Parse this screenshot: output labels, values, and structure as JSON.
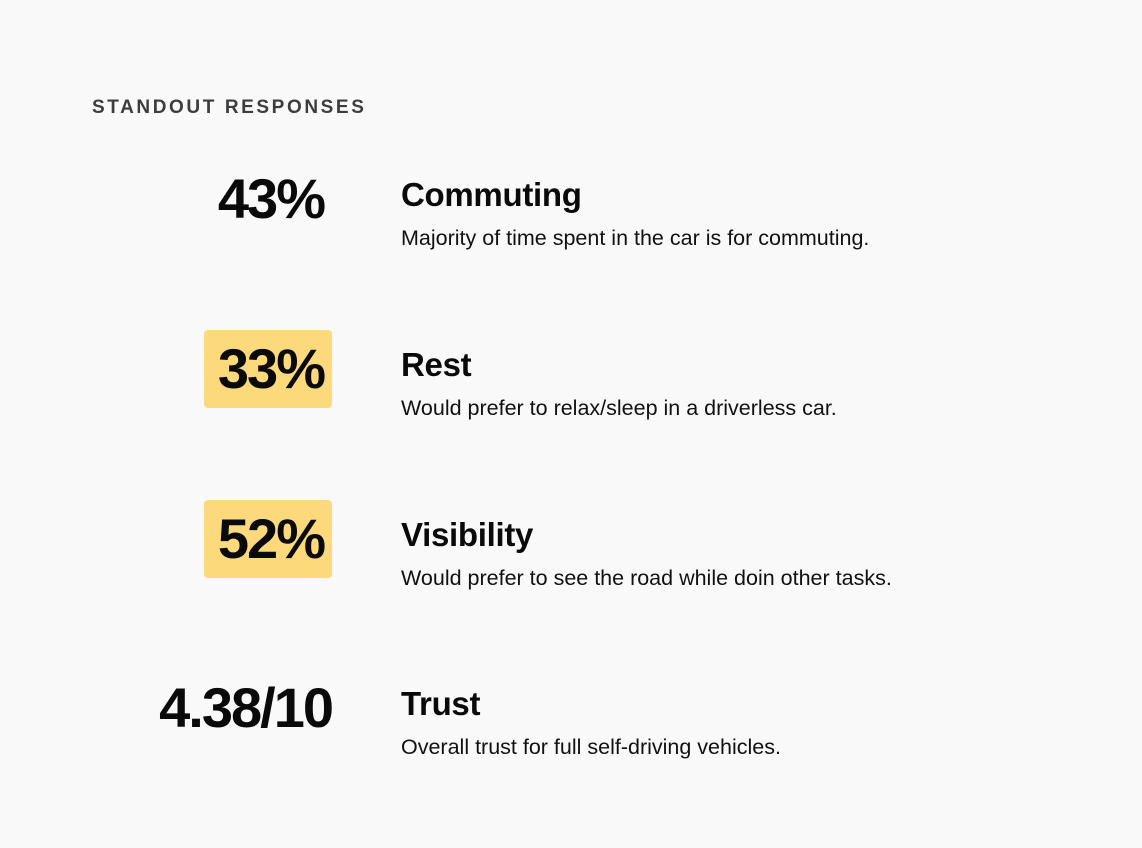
{
  "section_title": "STANDOUT RESPONSES",
  "items": [
    {
      "stat": "43%",
      "highlighted": false,
      "heading": "Commuting",
      "description": "Majority of time spent in the car is for commuting."
    },
    {
      "stat": "33%",
      "highlighted": true,
      "heading": "Rest",
      "description": "Would prefer to relax/sleep in a driverless car."
    },
    {
      "stat": "52%",
      "highlighted": true,
      "heading": "Visibility",
      "description": "Would prefer to see the road while doin other tasks."
    },
    {
      "stat": "4.38/10",
      "highlighted": false,
      "heading": "Trust",
      "description": "Overall trust for full self-driving vehicles."
    }
  ],
  "colors": {
    "background": "#f9f9f9",
    "highlight": "#fcd97a",
    "text": "#0a0a0a",
    "section_title": "#3d3d3d"
  }
}
